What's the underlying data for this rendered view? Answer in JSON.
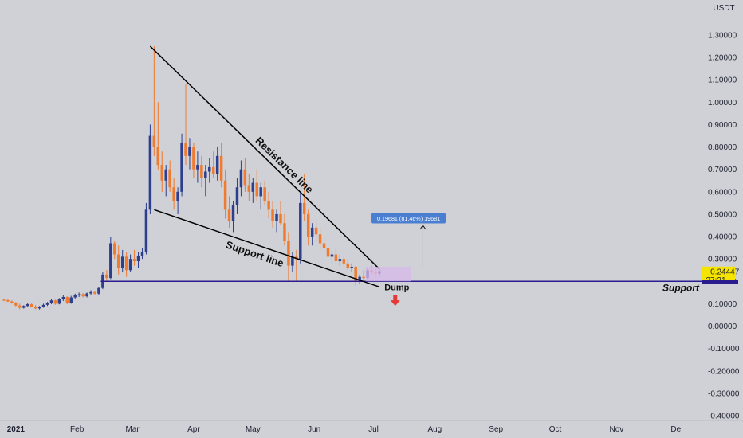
{
  "chart_data": {
    "type": "candlestick",
    "currency_label": "USDT",
    "y_ticks": [
      "1.30000",
      "1.20000",
      "1.10000",
      "1.00000",
      "0.90000",
      "0.80000",
      "0.70000",
      "0.60000",
      "0.50000",
      "0.40000",
      "0.30000",
      "0.20000",
      "0.10000",
      "0.00000",
      "-0.10000",
      "-0.20000",
      "-0.30000",
      "-0.40000"
    ],
    "y_tick_values": [
      1.3,
      1.2,
      1.1,
      1.0,
      0.9,
      0.8,
      0.7,
      0.6,
      0.5,
      0.4,
      0.3,
      0.2,
      0.1,
      0.0,
      -0.1,
      -0.2,
      -0.3,
      -0.4
    ],
    "ylim": [
      -0.4,
      1.3
    ],
    "x_ticks": [
      "2021",
      "Feb",
      "Mar",
      "Apr",
      "May",
      "Jun",
      "Jul",
      "Aug",
      "Sep",
      "Oct",
      "Nov",
      "De"
    ],
    "x_tick_dates": [
      "2021-01-01",
      "2021-02-01",
      "2021-03-01",
      "2021-04-01",
      "2021-05-01",
      "2021-06-01",
      "2021-07-01",
      "2021-08-01",
      "2021-09-01",
      "2021-10-01",
      "2021-11-01",
      "2021-12-01"
    ],
    "xlim": [
      "2020-12-24",
      "2021-12-14"
    ],
    "last_price": "0.24447",
    "countdown": "27:21",
    "support_level": 0.2,
    "colors": {
      "background": "#cfd1d6",
      "up": "#2c3e8c",
      "down": "#f07a2d",
      "support_line": "#2a1b8f",
      "trend_lines": "#000000",
      "price_badge": "#f5e300",
      "measure_box": "#4a7ed0",
      "range_box": "#d8b8ea",
      "dump_arrow": "#e53935"
    },
    "annotations": {
      "resistance_label": "Resistance line",
      "support_line_label": "Support line",
      "support_label": "Support",
      "dump_label": "Dump",
      "measure_label": "0.19681 (81.46%) 19681"
    },
    "resistance_line": [
      [
        "2021-03-10",
        1.25
      ],
      [
        "2021-07-04",
        0.255
      ]
    ],
    "support_trend_line": [
      [
        "2021-03-12",
        0.52
      ],
      [
        "2021-07-04",
        0.175
      ]
    ],
    "horizontal_support": [
      [
        "2021-02-13",
        0.2
      ],
      [
        "2021-12-14",
        0.2
      ]
    ],
    "range_box": {
      "from": "2021-06-27",
      "to": "2021-07-20",
      "low": 0.2,
      "high": 0.265
    },
    "target_arrow": {
      "date": "2021-07-26",
      "from": 0.265,
      "to": 0.45
    },
    "dump_arrow": {
      "date": "2021-07-12",
      "y": 0.1
    },
    "candles": [
      [
        "2020-12-26",
        0.118,
        0.123,
        0.111,
        0.116
      ],
      [
        "2020-12-28",
        0.116,
        0.12,
        0.108,
        0.11
      ],
      [
        "2020-12-30",
        0.11,
        0.115,
        0.1,
        0.104
      ],
      [
        "2021-01-01",
        0.104,
        0.108,
        0.088,
        0.092
      ],
      [
        "2021-01-03",
        0.092,
        0.1,
        0.075,
        0.082
      ],
      [
        "2021-01-05",
        0.082,
        0.093,
        0.078,
        0.09
      ],
      [
        "2021-01-07",
        0.09,
        0.103,
        0.085,
        0.098
      ],
      [
        "2021-01-09",
        0.098,
        0.101,
        0.083,
        0.087
      ],
      [
        "2021-01-11",
        0.087,
        0.094,
        0.075,
        0.079
      ],
      [
        "2021-01-13",
        0.079,
        0.09,
        0.074,
        0.086
      ],
      [
        "2021-01-15",
        0.086,
        0.1,
        0.082,
        0.095
      ],
      [
        "2021-01-17",
        0.095,
        0.108,
        0.09,
        0.104
      ],
      [
        "2021-01-19",
        0.104,
        0.12,
        0.098,
        0.115
      ],
      [
        "2021-01-21",
        0.115,
        0.118,
        0.095,
        0.1
      ],
      [
        "2021-01-23",
        0.1,
        0.125,
        0.097,
        0.12
      ],
      [
        "2021-01-25",
        0.12,
        0.138,
        0.112,
        0.13
      ],
      [
        "2021-01-27",
        0.13,
        0.133,
        0.098,
        0.105
      ],
      [
        "2021-01-29",
        0.105,
        0.135,
        0.1,
        0.128
      ],
      [
        "2021-01-31",
        0.128,
        0.145,
        0.12,
        0.138
      ],
      [
        "2021-02-02",
        0.138,
        0.15,
        0.13,
        0.142
      ],
      [
        "2021-02-04",
        0.142,
        0.148,
        0.128,
        0.133
      ],
      [
        "2021-02-06",
        0.133,
        0.15,
        0.128,
        0.146
      ],
      [
        "2021-02-08",
        0.146,
        0.16,
        0.138,
        0.152
      ],
      [
        "2021-02-10",
        0.152,
        0.158,
        0.14,
        0.145
      ],
      [
        "2021-02-12",
        0.145,
        0.175,
        0.14,
        0.17
      ],
      [
        "2021-02-14",
        0.17,
        0.24,
        0.165,
        0.23
      ],
      [
        "2021-02-16",
        0.23,
        0.25,
        0.2,
        0.215
      ],
      [
        "2021-02-18",
        0.215,
        0.4,
        0.21,
        0.37
      ],
      [
        "2021-02-20",
        0.37,
        0.38,
        0.3,
        0.32
      ],
      [
        "2021-02-22",
        0.32,
        0.36,
        0.23,
        0.26
      ],
      [
        "2021-02-24",
        0.26,
        0.34,
        0.24,
        0.31
      ],
      [
        "2021-02-26",
        0.31,
        0.33,
        0.22,
        0.25
      ],
      [
        "2021-02-28",
        0.25,
        0.32,
        0.24,
        0.3
      ],
      [
        "2021-03-02",
        0.3,
        0.34,
        0.27,
        0.29
      ],
      [
        "2021-03-04",
        0.29,
        0.33,
        0.26,
        0.315
      ],
      [
        "2021-03-06",
        0.315,
        0.35,
        0.3,
        0.33
      ],
      [
        "2021-03-08",
        0.33,
        0.55,
        0.32,
        0.52
      ],
      [
        "2021-03-10",
        0.52,
        0.9,
        0.5,
        0.85
      ],
      [
        "2021-03-12",
        0.85,
        1.25,
        0.76,
        0.8
      ],
      [
        "2021-03-14",
        0.8,
        1.0,
        0.7,
        0.72
      ],
      [
        "2021-03-16",
        0.72,
        0.78,
        0.6,
        0.65
      ],
      [
        "2021-03-18",
        0.65,
        0.72,
        0.58,
        0.7
      ],
      [
        "2021-03-20",
        0.7,
        0.74,
        0.6,
        0.62
      ],
      [
        "2021-03-22",
        0.62,
        0.66,
        0.52,
        0.56
      ],
      [
        "2021-03-24",
        0.56,
        0.62,
        0.5,
        0.6
      ],
      [
        "2021-03-26",
        0.6,
        0.86,
        0.58,
        0.82
      ],
      [
        "2021-03-28",
        0.82,
        1.08,
        0.72,
        0.76
      ],
      [
        "2021-03-30",
        0.76,
        0.84,
        0.7,
        0.8
      ],
      [
        "2021-04-01",
        0.8,
        0.82,
        0.66,
        0.7
      ],
      [
        "2021-04-03",
        0.7,
        0.78,
        0.64,
        0.72
      ],
      [
        "2021-04-05",
        0.72,
        0.76,
        0.62,
        0.66
      ],
      [
        "2021-04-07",
        0.66,
        0.72,
        0.58,
        0.69
      ],
      [
        "2021-04-09",
        0.69,
        0.75,
        0.64,
        0.71
      ],
      [
        "2021-04-11",
        0.71,
        0.78,
        0.66,
        0.68
      ],
      [
        "2021-04-13",
        0.68,
        0.8,
        0.65,
        0.76
      ],
      [
        "2021-04-15",
        0.76,
        0.82,
        0.62,
        0.65
      ],
      [
        "2021-04-17",
        0.65,
        0.7,
        0.48,
        0.52
      ],
      [
        "2021-04-19",
        0.52,
        0.58,
        0.44,
        0.47
      ],
      [
        "2021-04-21",
        0.47,
        0.56,
        0.42,
        0.54
      ],
      [
        "2021-04-23",
        0.54,
        0.66,
        0.5,
        0.62
      ],
      [
        "2021-04-25",
        0.62,
        0.74,
        0.58,
        0.7
      ],
      [
        "2021-04-27",
        0.7,
        0.75,
        0.6,
        0.63
      ],
      [
        "2021-04-29",
        0.63,
        0.68,
        0.56,
        0.6
      ],
      [
        "2021-05-01",
        0.6,
        0.66,
        0.55,
        0.64
      ],
      [
        "2021-05-03",
        0.64,
        0.7,
        0.56,
        0.58
      ],
      [
        "2021-05-05",
        0.58,
        0.64,
        0.52,
        0.62
      ],
      [
        "2021-05-07",
        0.62,
        0.65,
        0.54,
        0.56
      ],
      [
        "2021-05-09",
        0.56,
        0.6,
        0.48,
        0.52
      ],
      [
        "2021-05-11",
        0.52,
        0.56,
        0.44,
        0.47
      ],
      [
        "2021-05-13",
        0.47,
        0.52,
        0.42,
        0.5
      ],
      [
        "2021-05-15",
        0.5,
        0.56,
        0.45,
        0.46
      ],
      [
        "2021-05-17",
        0.46,
        0.5,
        0.36,
        0.38
      ],
      [
        "2021-05-19",
        0.38,
        0.42,
        0.2,
        0.27
      ],
      [
        "2021-05-21",
        0.27,
        0.33,
        0.24,
        0.31
      ],
      [
        "2021-05-23",
        0.31,
        0.34,
        0.2,
        0.3
      ],
      [
        "2021-05-25",
        0.3,
        0.6,
        0.28,
        0.55
      ],
      [
        "2021-05-27",
        0.55,
        0.68,
        0.47,
        0.5
      ],
      [
        "2021-05-29",
        0.5,
        0.52,
        0.36,
        0.4
      ],
      [
        "2021-05-31",
        0.4,
        0.46,
        0.36,
        0.44
      ],
      [
        "2021-06-02",
        0.44,
        0.47,
        0.38,
        0.41
      ],
      [
        "2021-06-04",
        0.41,
        0.44,
        0.34,
        0.37
      ],
      [
        "2021-06-06",
        0.37,
        0.4,
        0.33,
        0.35
      ],
      [
        "2021-06-08",
        0.35,
        0.37,
        0.29,
        0.31
      ],
      [
        "2021-06-10",
        0.31,
        0.34,
        0.28,
        0.32
      ],
      [
        "2021-06-12",
        0.32,
        0.35,
        0.28,
        0.29
      ],
      [
        "2021-06-14",
        0.29,
        0.32,
        0.27,
        0.3
      ],
      [
        "2021-06-16",
        0.3,
        0.31,
        0.27,
        0.28
      ],
      [
        "2021-06-18",
        0.28,
        0.3,
        0.25,
        0.26
      ],
      [
        "2021-06-20",
        0.26,
        0.28,
        0.24,
        0.265
      ],
      [
        "2021-06-22",
        0.265,
        0.27,
        0.18,
        0.2
      ],
      [
        "2021-06-24",
        0.2,
        0.23,
        0.19,
        0.22
      ],
      [
        "2021-06-26",
        0.22,
        0.25,
        0.2,
        0.215
      ],
      [
        "2021-06-28",
        0.215,
        0.26,
        0.21,
        0.25
      ],
      [
        "2021-06-30",
        0.25,
        0.27,
        0.23,
        0.24
      ],
      [
        "2021-07-02",
        0.24,
        0.26,
        0.22,
        0.235
      ],
      [
        "2021-07-04",
        0.235,
        0.255,
        0.225,
        0.245
      ]
    ]
  }
}
